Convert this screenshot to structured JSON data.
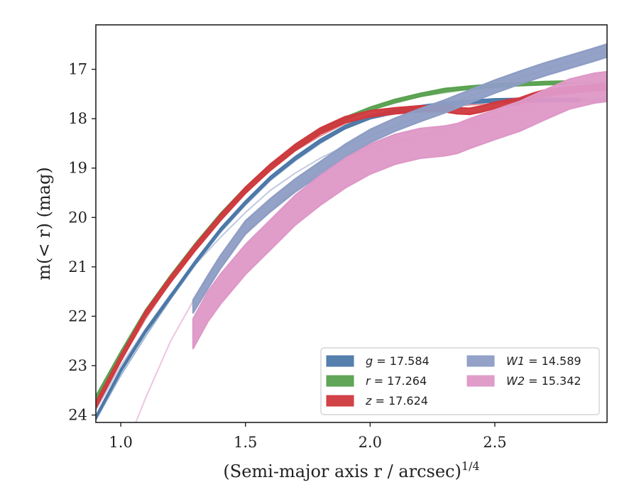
{
  "chart_data": {
    "type": "line",
    "title": "",
    "xlabel": "(Semi-major axis r / arcsec)",
    "xlabel_superscript": "1/4",
    "ylabel": "m(< r) (mag)",
    "xlim": [
      0.9,
      2.95
    ],
    "ylim": [
      24.15,
      16.1
    ],
    "y_inverted": true,
    "grid": false,
    "legend_position": "lower-right",
    "xticks": [
      {
        "v": 1.0,
        "label": "1.0"
      },
      {
        "v": 1.5,
        "label": "1.5"
      },
      {
        "v": 2.0,
        "label": "2.0"
      },
      {
        "v": 2.5,
        "label": "2.5"
      }
    ],
    "yticks": [
      {
        "v": 17,
        "label": "17"
      },
      {
        "v": 18,
        "label": "18"
      },
      {
        "v": 19,
        "label": "19"
      },
      {
        "v": 20,
        "label": "20"
      },
      {
        "v": 21,
        "label": "21"
      },
      {
        "v": 22,
        "label": "22"
      },
      {
        "v": 23,
        "label": "23"
      },
      {
        "v": 24,
        "label": "24"
      }
    ],
    "series": [
      {
        "name": "g = 17.584",
        "color": "#4c78a8",
        "model_x": [
          0.9,
          1.0,
          1.1,
          1.2,
          1.3,
          1.4,
          1.5,
          1.6,
          1.7,
          1.8,
          1.9,
          2.0,
          2.2,
          2.4,
          2.6,
          2.8,
          2.95
        ],
        "model_y": [
          24.1,
          23.2,
          22.4,
          21.65,
          20.95,
          20.3,
          19.75,
          19.25,
          18.85,
          18.5,
          18.2,
          18.0,
          17.8,
          17.68,
          17.63,
          17.6,
          17.6
        ],
        "x": [
          0.9,
          1.0,
          1.1,
          1.2,
          1.3,
          1.4,
          1.5,
          1.6,
          1.7,
          1.8,
          1.9,
          2.0,
          2.1,
          2.2,
          2.3,
          2.4,
          2.5,
          2.6,
          2.7,
          2.84
        ],
        "y": [
          24.05,
          23.1,
          22.3,
          21.6,
          20.9,
          20.25,
          19.7,
          19.2,
          18.8,
          18.45,
          18.17,
          17.97,
          17.85,
          17.77,
          17.7,
          17.66,
          17.63,
          17.62,
          17.62,
          17.62
        ],
        "band": 0.03
      },
      {
        "name": "r = 17.264",
        "color": "#59a14f",
        "model_x": [
          0.9,
          1.0,
          1.1,
          1.2,
          1.3,
          1.4,
          1.5,
          1.6,
          1.7,
          1.8,
          1.9,
          2.0,
          2.2,
          2.4,
          2.6,
          2.8,
          2.95
        ],
        "model_y": [
          23.7,
          22.8,
          21.95,
          21.25,
          20.6,
          20.0,
          19.45,
          18.98,
          18.6,
          18.28,
          18.02,
          17.82,
          17.55,
          17.4,
          17.32,
          17.28,
          17.27
        ],
        "x": [
          0.9,
          1.0,
          1.1,
          1.2,
          1.3,
          1.4,
          1.5,
          1.6,
          1.7,
          1.8,
          1.9,
          2.0,
          2.1,
          2.2,
          2.3,
          2.4,
          2.5,
          2.6,
          2.7,
          2.78
        ],
        "y": [
          23.65,
          22.75,
          21.9,
          21.2,
          20.55,
          19.95,
          19.42,
          18.95,
          18.58,
          18.26,
          18.0,
          17.8,
          17.64,
          17.52,
          17.42,
          17.37,
          17.33,
          17.3,
          17.28,
          17.27
        ],
        "band": 0.03
      },
      {
        "name": "z = 17.624",
        "color": "#d0393e",
        "model_x": [
          0.9,
          1.0,
          1.1,
          1.2,
          1.3,
          1.4,
          1.5,
          1.6,
          1.7,
          1.8,
          1.9,
          2.0,
          2.2,
          2.4,
          2.6,
          2.8,
          2.95
        ],
        "model_y": [
          23.8,
          22.9,
          22.05,
          21.3,
          20.65,
          20.05,
          19.5,
          19.05,
          18.65,
          18.35,
          18.1,
          17.95,
          17.8,
          17.72,
          17.68,
          17.65,
          17.64
        ],
        "x": [
          0.9,
          1.0,
          1.1,
          1.2,
          1.3,
          1.4,
          1.5,
          1.6,
          1.7,
          1.8,
          1.9,
          2.0,
          2.1,
          2.2,
          2.3,
          2.35,
          2.4,
          2.45,
          2.5,
          2.55,
          2.6,
          2.65,
          2.7,
          2.8,
          2.9,
          2.95
        ],
        "y": [
          23.8,
          22.85,
          21.95,
          21.25,
          20.6,
          20.0,
          19.45,
          18.98,
          18.58,
          18.25,
          18.02,
          17.9,
          17.84,
          17.8,
          17.8,
          17.84,
          17.85,
          17.8,
          17.73,
          17.68,
          17.64,
          17.55,
          17.48,
          17.42,
          17.37,
          17.36
        ],
        "band": 0.06
      },
      {
        "name": "W1 = 14.589",
        "color": "#8e9dc4",
        "model_x": [
          0.9,
          1.0,
          1.1,
          1.2,
          1.3,
          1.4,
          1.5,
          1.6,
          1.7,
          1.8,
          1.9,
          2.0,
          2.2,
          2.4,
          2.6,
          2.8,
          2.95
        ],
        "model_y": [
          23.9,
          23.0,
          22.25,
          21.55,
          20.95,
          20.4,
          19.9,
          19.45,
          19.1,
          18.8,
          18.55,
          18.35,
          17.95,
          17.55,
          17.18,
          16.85,
          16.6
        ],
        "x": [
          1.29,
          1.35,
          1.4,
          1.5,
          1.6,
          1.7,
          1.8,
          1.9,
          2.0,
          2.1,
          2.2,
          2.3,
          2.4,
          2.5,
          2.6,
          2.7,
          2.8,
          2.9,
          2.95
        ],
        "y": [
          21.8,
          21.3,
          20.9,
          20.2,
          19.75,
          19.35,
          19.0,
          18.65,
          18.35,
          18.12,
          17.93,
          17.75,
          17.55,
          17.35,
          17.17,
          17.0,
          16.85,
          16.7,
          16.62
        ],
        "band": 0.13
      },
      {
        "name": "W2 = 15.342",
        "color": "#de98c7",
        "model_x": [
          1.06,
          1.1,
          1.2,
          1.3,
          1.4,
          1.5,
          1.6,
          1.7,
          1.8,
          1.9,
          2.0,
          2.2,
          2.4,
          2.6,
          2.8,
          2.95
        ],
        "model_y": [
          24.15,
          23.65,
          22.5,
          21.6,
          20.9,
          20.35,
          19.85,
          19.4,
          19.05,
          18.8,
          18.6,
          18.35,
          18.1,
          17.8,
          17.5,
          17.33
        ],
        "x": [
          1.29,
          1.35,
          1.4,
          1.5,
          1.6,
          1.7,
          1.8,
          1.9,
          2.0,
          2.1,
          2.2,
          2.3,
          2.35,
          2.4,
          2.5,
          2.6,
          2.7,
          2.8,
          2.9,
          2.95
        ],
        "y": [
          22.35,
          21.8,
          21.45,
          20.85,
          20.35,
          19.85,
          19.45,
          19.1,
          18.82,
          18.62,
          18.5,
          18.45,
          18.4,
          18.3,
          18.12,
          17.95,
          17.72,
          17.5,
          17.38,
          17.35
        ],
        "band": 0.3
      }
    ],
    "legend": {
      "columns": [
        [
          {
            "name": "g",
            "value": "= 17.584",
            "color": "#4c78a8"
          },
          {
            "name": "r",
            "value": "= 17.264",
            "color": "#59a14f"
          },
          {
            "name": "z",
            "value": "= 17.624",
            "color": "#d0393e"
          }
        ],
        [
          {
            "name": "W1",
            "value": "= 14.589",
            "color": "#8e9dc4"
          },
          {
            "name": "W2",
            "value": "= 15.342",
            "color": "#de98c7"
          }
        ]
      ]
    }
  }
}
